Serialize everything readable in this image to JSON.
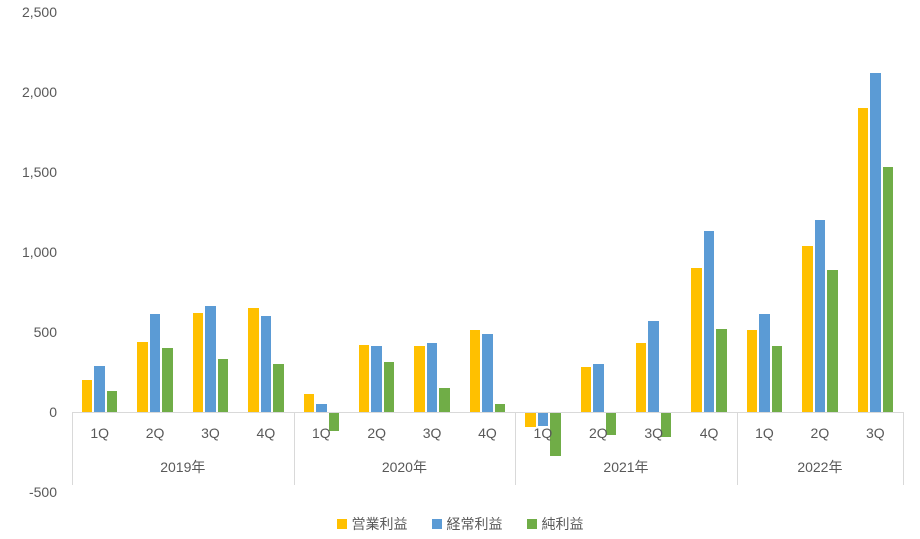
{
  "chart_data": {
    "type": "bar",
    "title": "",
    "legend_position": "bottom",
    "grid": false,
    "background": "#FFFFFF",
    "text_color": "#595959",
    "axis_line_color": "#D9D9D9",
    "y_axis": {
      "min": -500,
      "max": 2500,
      "ticks": [
        {
          "value": 2500,
          "label": "2,500"
        },
        {
          "value": 2000,
          "label": "2,000"
        },
        {
          "value": 1500,
          "label": "1,500"
        },
        {
          "value": 1000,
          "label": "1,000"
        },
        {
          "value": 500,
          "label": "500"
        },
        {
          "value": 0,
          "label": "0"
        },
        {
          "value": -500,
          "label": "-500"
        }
      ]
    },
    "x_axis": {
      "year_groups": [
        {
          "label": "2019年",
          "quarters": [
            "1Q",
            "2Q",
            "3Q",
            "4Q"
          ]
        },
        {
          "label": "2020年",
          "quarters": [
            "1Q",
            "2Q",
            "3Q",
            "4Q"
          ]
        },
        {
          "label": "2021年",
          "quarters": [
            "1Q",
            "2Q",
            "3Q",
            "4Q"
          ]
        },
        {
          "label": "2022年",
          "quarters": [
            "1Q",
            "2Q",
            "3Q"
          ]
        }
      ]
    },
    "series": [
      {
        "name": "営業利益",
        "color": "#FFC000",
        "values": [
          200,
          440,
          620,
          650,
          110,
          420,
          410,
          510,
          -90,
          280,
          430,
          900,
          510,
          1040,
          1900
        ]
      },
      {
        "name": "経常利益",
        "color": "#5B9BD5",
        "values": [
          290,
          610,
          660,
          600,
          50,
          410,
          430,
          490,
          -80,
          300,
          570,
          1130,
          610,
          1200,
          2120
        ]
      },
      {
        "name": "純利益",
        "color": "#70AD47",
        "values": [
          130,
          400,
          330,
          300,
          -110,
          310,
          150,
          50,
          -270,
          -140,
          -150,
          520,
          410,
          890,
          1530
        ]
      }
    ]
  }
}
